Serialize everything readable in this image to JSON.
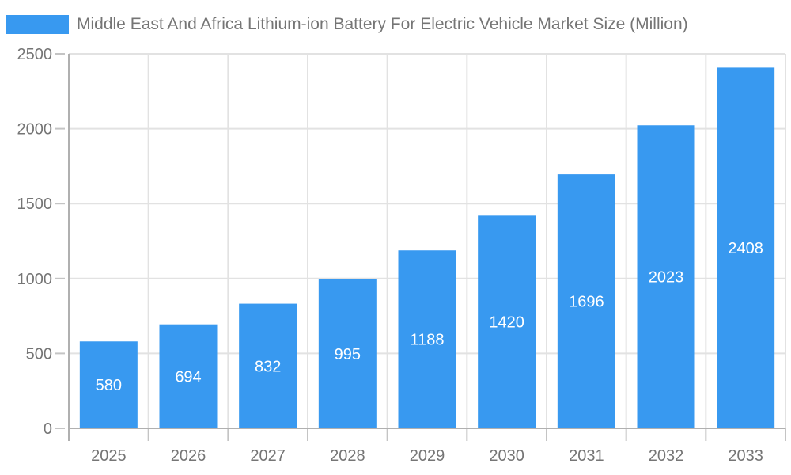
{
  "chart_data": {
    "type": "bar",
    "title": "Middle East And Africa Lithium-ion Battery For Electric Vehicle Market Size (Million)",
    "categories": [
      "2025",
      "2026",
      "2027",
      "2028",
      "2029",
      "2030",
      "2031",
      "2032",
      "2033"
    ],
    "values": [
      580,
      694,
      832,
      995,
      1188,
      1420,
      1696,
      2023,
      2408
    ],
    "series": [
      {
        "name": "Middle East And Africa Lithium-ion Battery For Electric Vehicle Market Size (Million)",
        "values": [
          580,
          694,
          832,
          995,
          1188,
          1420,
          1696,
          2023,
          2408
        ]
      }
    ],
    "xlabel": "",
    "ylabel": "",
    "ylim": [
      0,
      2500
    ],
    "yticks": [
      0,
      500,
      1000,
      1500,
      2000,
      2500
    ],
    "grid": true,
    "legend_position": "top-left",
    "bar_labels_shown": true,
    "colors": {
      "bar": "#3899f0",
      "bar_label": "#ffffff",
      "axis": "#b0b0b0",
      "tick": "#c4c4c4",
      "grid": "#e2e2e2",
      "text": "#757575",
      "background": "#ffffff"
    }
  }
}
